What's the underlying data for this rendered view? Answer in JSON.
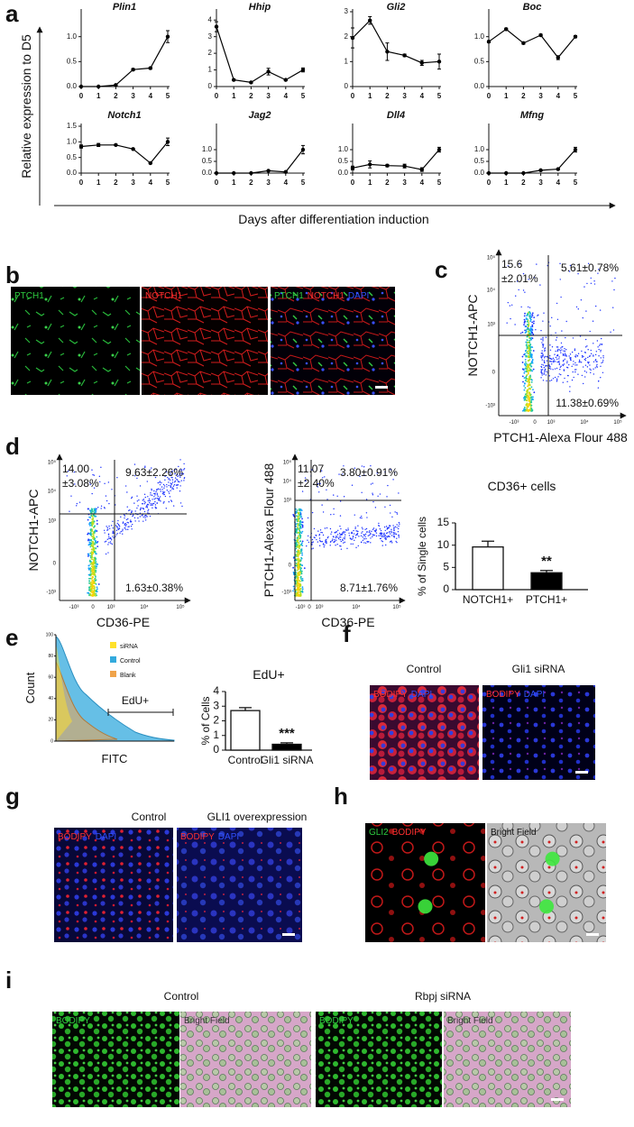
{
  "panel_labels": [
    "a",
    "b",
    "c",
    "d",
    "e",
    "f",
    "g",
    "h",
    "i"
  ],
  "a": {
    "ylabel": "Relative expression to D5",
    "xlabel": "Days after differentiation induction"
  },
  "chart_data": [
    {
      "type": "line",
      "title": "Plin1",
      "x": [
        0,
        1,
        2,
        3,
        4,
        5
      ],
      "xlim": [
        0,
        5
      ],
      "xticks": [
        0,
        1,
        2,
        3,
        4,
        5
      ],
      "ylim": [
        0,
        1.5
      ],
      "yticks": [
        {
          "value": 0,
          "label": "0.0"
        },
        {
          "value": 0.5,
          "label": "0.5"
        },
        {
          "value": 1,
          "label": "1.0"
        }
      ],
      "series": [
        {
          "color": "#000000",
          "values": [
            0,
            0,
            0.03,
            0.34,
            0.37,
            1.0
          ],
          "errors": [
            0,
            0,
            0.01,
            0.02,
            0.02,
            0.12
          ]
        }
      ]
    },
    {
      "type": "line",
      "title": "Hhip",
      "x": [
        0,
        1,
        2,
        3,
        4,
        5
      ],
      "xlim": [
        0,
        5
      ],
      "xticks": [
        0,
        1,
        2,
        3,
        4,
        5
      ],
      "ylim": [
        0,
        4.5
      ],
      "yticks": [
        0,
        1,
        2,
        3,
        4
      ],
      "series": [
        {
          "color": "#000000",
          "values": [
            3.6,
            0.4,
            0.25,
            0.9,
            0.4,
            1.0
          ],
          "errors": [
            0.3,
            0.05,
            0.05,
            0.2,
            0.05,
            0.12
          ]
        }
      ]
    },
    {
      "type": "line",
      "title": "Gli2",
      "x": [
        0,
        1,
        2,
        3,
        4,
        5
      ],
      "xlim": [
        0,
        5
      ],
      "xticks": [
        0,
        1,
        2,
        3,
        4,
        5
      ],
      "ylim": [
        0,
        3
      ],
      "yticks": [
        0,
        1,
        2,
        3
      ],
      "series": [
        {
          "color": "#000000",
          "values": [
            1.95,
            2.65,
            1.4,
            1.25,
            0.95,
            1.0
          ],
          "errors": [
            0.4,
            0.15,
            0.35,
            0.05,
            0.1,
            0.3
          ]
        }
      ]
    },
    {
      "type": "line",
      "title": "Boc",
      "x": [
        0,
        1,
        2,
        3,
        4,
        5
      ],
      "xlim": [
        0,
        5
      ],
      "xticks": [
        0,
        1,
        2,
        3,
        4,
        5
      ],
      "ylim": [
        0,
        1.5
      ],
      "yticks": [
        {
          "value": 0,
          "label": "0.0"
        },
        {
          "value": 0.5,
          "label": "0.5"
        },
        {
          "value": 1,
          "label": "1.0"
        }
      ],
      "series": [
        {
          "color": "#000000",
          "values": [
            0.9,
            1.15,
            0.87,
            1.03,
            0.58,
            1.0
          ],
          "errors": [
            0.02,
            0.02,
            0.02,
            0.02,
            0.04,
            0.02
          ]
        }
      ]
    },
    {
      "type": "line",
      "title": "Notch1",
      "x": [
        0,
        1,
        2,
        3,
        4,
        5
      ],
      "xlim": [
        0,
        5
      ],
      "xticks": [
        0,
        1,
        2,
        3,
        4,
        5
      ],
      "ylim": [
        0,
        1.5
      ],
      "yticks": [
        {
          "value": 0,
          "label": "0.0"
        },
        {
          "value": 0.5,
          "label": "0.5"
        },
        {
          "value": 1,
          "label": "1.0"
        },
        {
          "value": 1.5,
          "label": "1.5"
        }
      ],
      "series": [
        {
          "color": "#000000",
          "values": [
            0.85,
            0.9,
            0.9,
            0.77,
            0.32,
            1.0
          ],
          "errors": [
            0.05,
            0.05,
            0.02,
            0.02,
            0.02,
            0.12
          ]
        }
      ]
    },
    {
      "type": "line",
      "title": "Jag2",
      "x": [
        0,
        1,
        2,
        3,
        4,
        5
      ],
      "xlim": [
        0,
        5
      ],
      "xticks": [
        0,
        1,
        2,
        3,
        4,
        5
      ],
      "ylim": [
        0,
        2
      ],
      "yticks": [
        {
          "value": 0,
          "label": "0.0"
        },
        {
          "value": 0.5,
          "label": "0.5"
        },
        {
          "value": 1,
          "label": "1.0"
        }
      ],
      "series": [
        {
          "color": "#000000",
          "values": [
            0,
            0,
            0,
            0.1,
            0.05,
            1.0
          ],
          "errors": [
            0,
            0,
            0,
            0.02,
            0.02,
            0.18
          ]
        }
      ]
    },
    {
      "type": "line",
      "title": "Dll4",
      "x": [
        0,
        1,
        2,
        3,
        4,
        5
      ],
      "xlim": [
        0,
        5
      ],
      "xticks": [
        0,
        1,
        2,
        3,
        4,
        5
      ],
      "ylim": [
        0,
        2
      ],
      "yticks": [
        {
          "value": 0,
          "label": "0.0"
        },
        {
          "value": 0.5,
          "label": "0.5"
        },
        {
          "value": 1,
          "label": "1.0"
        }
      ],
      "series": [
        {
          "color": "#000000",
          "values": [
            0.22,
            0.37,
            0.32,
            0.3,
            0.15,
            1.0
          ],
          "errors": [
            0.08,
            0.15,
            0.05,
            0.08,
            0.08,
            0.1
          ]
        }
      ]
    },
    {
      "type": "line",
      "title": "Mfng",
      "x": [
        0,
        1,
        2,
        3,
        4,
        5
      ],
      "xlim": [
        0,
        5
      ],
      "xticks": [
        0,
        1,
        2,
        3,
        4,
        5
      ],
      "ylim": [
        0,
        2
      ],
      "yticks": [
        {
          "value": 0,
          "label": "0.0"
        },
        {
          "value": 0.5,
          "label": "0.5"
        },
        {
          "value": 1,
          "label": "1.0"
        }
      ],
      "series": [
        {
          "color": "#000000",
          "values": [
            0,
            0,
            0,
            0.12,
            0.17,
            1.0
          ],
          "errors": [
            0,
            0,
            0,
            0.03,
            0.02,
            0.1
          ]
        }
      ]
    },
    {
      "type": "bar",
      "title": "CD36+ cells",
      "ylabel": "% of Single cells",
      "categories": [
        "NOTCH1+",
        "PTCH1+"
      ],
      "values": [
        9.6,
        3.8
      ],
      "errors": [
        1.3,
        0.5
      ],
      "colors": [
        "#ffffff",
        "#000000"
      ],
      "ylim": [
        0,
        15
      ],
      "yticks": [
        0,
        5,
        10,
        15
      ],
      "annotation": "**"
    },
    {
      "type": "bar",
      "title": "EdU+",
      "ylabel": "% of Cells",
      "categories": [
        "Control",
        "Gli1 siRNA"
      ],
      "values": [
        2.7,
        0.4
      ],
      "errors": [
        0.2,
        0.1
      ],
      "colors": [
        "#ffffff",
        "#000000"
      ],
      "ylim": [
        0,
        4
      ],
      "yticks": [
        0,
        1,
        2,
        3,
        4
      ],
      "annotation": "***"
    }
  ],
  "flow": [
    {
      "ylabel": "NOTCH1-APC",
      "xlabel": "PTCH1-Alexa Flour 488",
      "yticks": [
        "10⁵",
        "10⁴",
        "10³",
        "0",
        "-10³"
      ],
      "xticks": [
        "-10³",
        "0",
        "10³",
        "10⁴",
        "10⁵"
      ],
      "quadrants": {
        "upper_left": [
          "15.6",
          "±2.01%"
        ],
        "upper_right": "5.61±0.78%",
        "lower_right": "11.38±0.69%"
      }
    },
    {
      "ylabel": "NOTCH1-APC",
      "xlabel": "CD36-PE",
      "yticks": [
        "10⁵",
        "10⁴",
        "10³",
        "0",
        "-10³"
      ],
      "xticks": [
        "-10³",
        "0",
        "10³",
        "10⁴",
        "10⁵"
      ],
      "quadrants": {
        "upper_left": [
          "14.00",
          "±3.08%"
        ],
        "upper_right": "9.63±2.26%",
        "lower_right": "1.63±0.38%"
      }
    },
    {
      "ylabel": "PTCH1-Alexa Flour 488",
      "xlabel": "CD36-PE",
      "yticks": [
        "10⁵",
        "10⁴",
        "10³",
        "0",
        "-10³"
      ],
      "xticks": [
        "-10³",
        "0",
        "10³",
        "10⁴",
        "10⁵"
      ],
      "quadrants": {
        "upper_left": [
          "11.07",
          "±2.40%"
        ],
        "upper_right": "3.80±0.91%",
        "lower_right": "8.71±1.76%"
      }
    }
  ],
  "histogram": {
    "ylabel": "Count",
    "xlabel": "FITC",
    "gate": "EdU+",
    "ylim": [
      0,
      100
    ],
    "yticks": [
      0,
      20,
      40,
      60,
      80,
      100
    ],
    "legend": [
      {
        "name": "siRNA",
        "color": "#ffe12b"
      },
      {
        "name": "Control",
        "color": "#33aadd"
      },
      {
        "name": "Blank",
        "color": "#f0a34a"
      }
    ]
  },
  "micrographs": {
    "b": {
      "panels": [
        {
          "labels": [
            {
              "text": "PTCH1",
              "color": "#2ecc40"
            }
          ]
        },
        {
          "labels": [
            {
              "text": "NOTCH1",
              "color": "#ff3030"
            }
          ]
        },
        {
          "labels": [
            {
              "text": "PTCH1",
              "color": "#2ecc40"
            },
            {
              "text": "NOTCH1",
              "color": "#ff3030"
            },
            {
              "text": "DAPI",
              "color": "#3050ff"
            }
          ]
        }
      ]
    },
    "f": {
      "titles": [
        "Control",
        "Gli1 siRNA"
      ],
      "panels": [
        {
          "labels": [
            {
              "text": "BODIPY",
              "color": "#ff3030"
            },
            {
              "text": "DAPI",
              "color": "#3050ff"
            }
          ]
        },
        {
          "labels": [
            {
              "text": "BODIPY",
              "color": "#ff3030"
            },
            {
              "text": "DAPI",
              "color": "#3050ff"
            }
          ]
        }
      ]
    },
    "g": {
      "titles": [
        "Control",
        "GLI1 overexpression"
      ],
      "panels": [
        {
          "labels": [
            {
              "text": "BODIPY",
              "color": "#ff3030"
            },
            {
              "text": "DAPI",
              "color": "#3050ff"
            }
          ]
        },
        {
          "labels": [
            {
              "text": "BODIPY",
              "color": "#ff3030"
            },
            {
              "text": "DAPI",
              "color": "#3050ff"
            }
          ]
        }
      ]
    },
    "h": {
      "panels": [
        {
          "labels": [
            {
              "text": "GLI2",
              "color": "#2ecc40"
            },
            {
              "text": "BODIPY",
              "color": "#ff3030"
            }
          ]
        },
        {
          "labels": [
            {
              "text": "Bright Field",
              "color": "#111111"
            }
          ]
        }
      ]
    },
    "i": {
      "titles": [
        "Control",
        "Rbpj siRNA"
      ],
      "panels": [
        {
          "labels": [
            {
              "text": "BODIPY",
              "color": "#2ecc40"
            }
          ]
        },
        {
          "labels": [
            {
              "text": "Bright Field",
              "color": "#333333"
            }
          ]
        },
        {
          "labels": [
            {
              "text": "BODIPY",
              "color": "#2ecc40"
            }
          ]
        },
        {
          "labels": [
            {
              "text": "Bright Field",
              "color": "#333333"
            }
          ]
        }
      ]
    }
  }
}
